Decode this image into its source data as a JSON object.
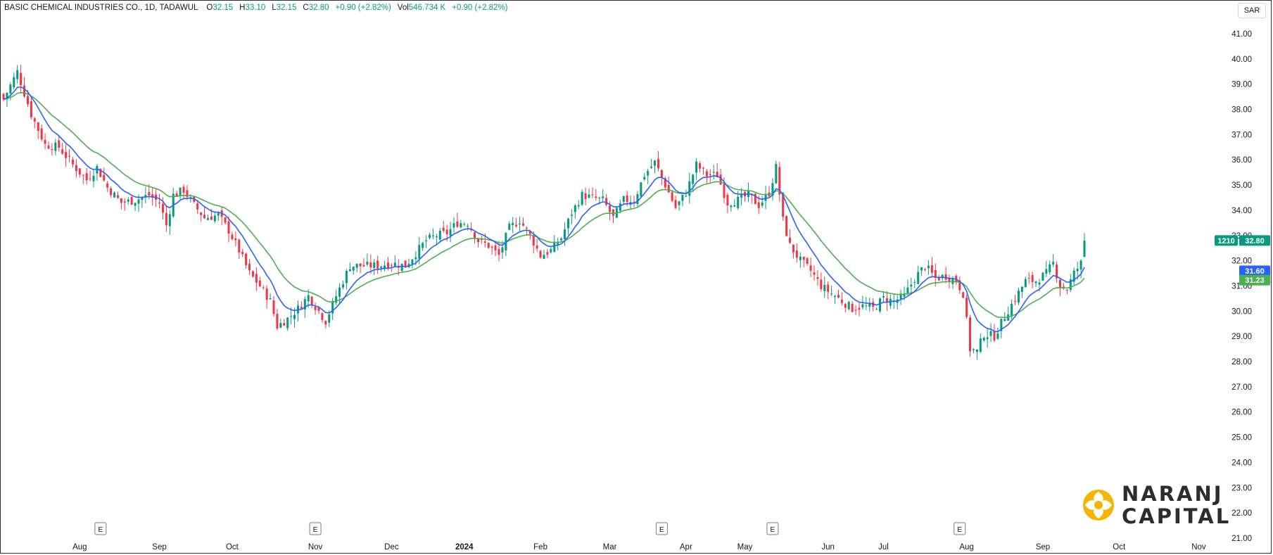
{
  "legend": {
    "symbol": "BASIC CHEMICAL INDUSTRIES CO., 1D, TADAWUL",
    "open_label": "O",
    "open": "32.15",
    "high_label": "H",
    "high": "33.10",
    "low_label": "L",
    "low": "32.15",
    "close_label": "C",
    "close": "32.80",
    "change": "+0.90 (+2.82%)",
    "volume_label": "Vol",
    "volume": "546.734 K",
    "volume_change": "+0.90 (+2.82%)"
  },
  "currency": "SAR",
  "price_tags": {
    "countdown": "1210",
    "last": "32.80",
    "ema_fast": "31.60",
    "ema_slow": "31.23"
  },
  "logo": {
    "line1": "NARANJ",
    "line2": "CAPITAL"
  },
  "colors": {
    "up": "#089981",
    "down": "#f23645",
    "ema_fast": "#2962ff",
    "ema_slow": "#4caf50"
  },
  "chart_data": {
    "type": "candlestick",
    "y_ticks": [
      "21.00",
      "22.00",
      "23.00",
      "24.00",
      "25.00",
      "26.00",
      "27.00",
      "28.00",
      "29.00",
      "30.00",
      "31.00",
      "32.00",
      "33.00",
      "34.00",
      "35.00",
      "36.00",
      "37.00",
      "38.00",
      "39.00",
      "40.00",
      "41.00"
    ],
    "ylim": [
      21,
      41.5
    ],
    "x_ticks": [
      {
        "label": "Aug",
        "index": 22
      },
      {
        "label": "Sep",
        "index": 45
      },
      {
        "label": "Oct",
        "index": 66
      },
      {
        "label": "Nov",
        "index": 90
      },
      {
        "label": "Dec",
        "index": 112
      },
      {
        "label": "2024",
        "index": 133,
        "bold": true
      },
      {
        "label": "Feb",
        "index": 155
      },
      {
        "label": "Mar",
        "index": 175
      },
      {
        "label": "Apr",
        "index": 197
      },
      {
        "label": "May",
        "index": 214
      },
      {
        "label": "Jun",
        "index": 238
      },
      {
        "label": "Jul",
        "index": 254
      },
      {
        "label": "Aug",
        "index": 278
      },
      {
        "label": "Sep",
        "index": 300
      },
      {
        "label": "Oct",
        "index": 322
      },
      {
        "label": "Nov",
        "index": 345
      }
    ],
    "earnings_markers": [
      {
        "label": "E",
        "index": 28
      },
      {
        "label": "E",
        "index": 90
      },
      {
        "label": "E",
        "index": 190
      },
      {
        "label": "E",
        "index": 222
      },
      {
        "label": "E",
        "index": 276
      }
    ],
    "series": [
      {
        "name": "BASIC CHEMICAL INDUSTRIES CO."
      }
    ],
    "close_path": [
      [
        0,
        38.4
      ],
      [
        4,
        39.5
      ],
      [
        8,
        37.8
      ],
      [
        12,
        36.6
      ],
      [
        16,
        36.5
      ],
      [
        20,
        35.8
      ],
      [
        24,
        35.2
      ],
      [
        27,
        35.7
      ],
      [
        30,
        34.9
      ],
      [
        34,
        34.3
      ],
      [
        38,
        34.4
      ],
      [
        42,
        34.6
      ],
      [
        45,
        34.3
      ],
      [
        47,
        33.4
      ],
      [
        49,
        34.6
      ],
      [
        52,
        34.8
      ],
      [
        55,
        34.2
      ],
      [
        58,
        33.7
      ],
      [
        62,
        33.8
      ],
      [
        65,
        33.2
      ],
      [
        68,
        32.4
      ],
      [
        71,
        31.5
      ],
      [
        74,
        31.0
      ],
      [
        77,
        30.4
      ],
      [
        79,
        29.4
      ],
      [
        82,
        29.7
      ],
      [
        85,
        30.1
      ],
      [
        88,
        30.6
      ],
      [
        91,
        30.0
      ],
      [
        93,
        29.6
      ],
      [
        96,
        30.6
      ],
      [
        98,
        31.2
      ],
      [
        100,
        31.8
      ],
      [
        104,
        31.8
      ],
      [
        108,
        31.8
      ],
      [
        112,
        31.9
      ],
      [
        116,
        31.8
      ],
      [
        119,
        32.3
      ],
      [
        122,
        32.8
      ],
      [
        125,
        33.0
      ],
      [
        128,
        33.1
      ],
      [
        131,
        33.5
      ],
      [
        134,
        33.5
      ],
      [
        137,
        32.8
      ],
      [
        140,
        32.6
      ],
      [
        143,
        32.2
      ],
      [
        146,
        33.3
      ],
      [
        149,
        33.6
      ],
      [
        152,
        33.0
      ],
      [
        155,
        32.2
      ],
      [
        158,
        32.4
      ],
      [
        161,
        32.9
      ],
      [
        164,
        33.9
      ],
      [
        167,
        34.6
      ],
      [
        170,
        34.5
      ],
      [
        173,
        34.4
      ],
      [
        176,
        33.7
      ],
      [
        179,
        34.4
      ],
      [
        182,
        34.4
      ],
      [
        185,
        35.4
      ],
      [
        188,
        35.9
      ],
      [
        191,
        35.0
      ],
      [
        194,
        34.1
      ],
      [
        197,
        34.7
      ],
      [
        200,
        35.8
      ],
      [
        203,
        35.4
      ],
      [
        206,
        35.4
      ],
      [
        209,
        34.3
      ],
      [
        212,
        34.4
      ],
      [
        215,
        34.6
      ],
      [
        218,
        34.2
      ],
      [
        221,
        34.7
      ],
      [
        223,
        35.7
      ],
      [
        225,
        33.6
      ],
      [
        227,
        32.6
      ],
      [
        230,
        32.0
      ],
      [
        233,
        31.6
      ],
      [
        236,
        31.0
      ],
      [
        239,
        30.7
      ],
      [
        242,
        30.4
      ],
      [
        245,
        30.1
      ],
      [
        248,
        30.2
      ],
      [
        251,
        30.1
      ],
      [
        254,
        30.5
      ],
      [
        257,
        30.4
      ],
      [
        260,
        30.6
      ],
      [
        263,
        31.3
      ],
      [
        266,
        31.8
      ],
      [
        269,
        31.3
      ],
      [
        272,
        31.4
      ],
      [
        275,
        31.2
      ],
      [
        277,
        30.7
      ],
      [
        279,
        28.5
      ],
      [
        281,
        28.4
      ],
      [
        283,
        29.1
      ],
      [
        286,
        29.0
      ],
      [
        289,
        29.8
      ],
      [
        292,
        30.5
      ],
      [
        295,
        31.2
      ],
      [
        298,
        31.2
      ],
      [
        301,
        31.5
      ],
      [
        303,
        31.9
      ],
      [
        305,
        31.0
      ],
      [
        307,
        30.9
      ],
      [
        309,
        31.5
      ],
      [
        311,
        31.9
      ],
      [
        312,
        32.8
      ]
    ],
    "last_candle": {
      "open": 32.15,
      "high": 33.1,
      "low": 32.15,
      "close": 32.8
    },
    "ema_fast_last": 31.6,
    "ema_slow_last": 31.23,
    "bar_count": 313
  }
}
